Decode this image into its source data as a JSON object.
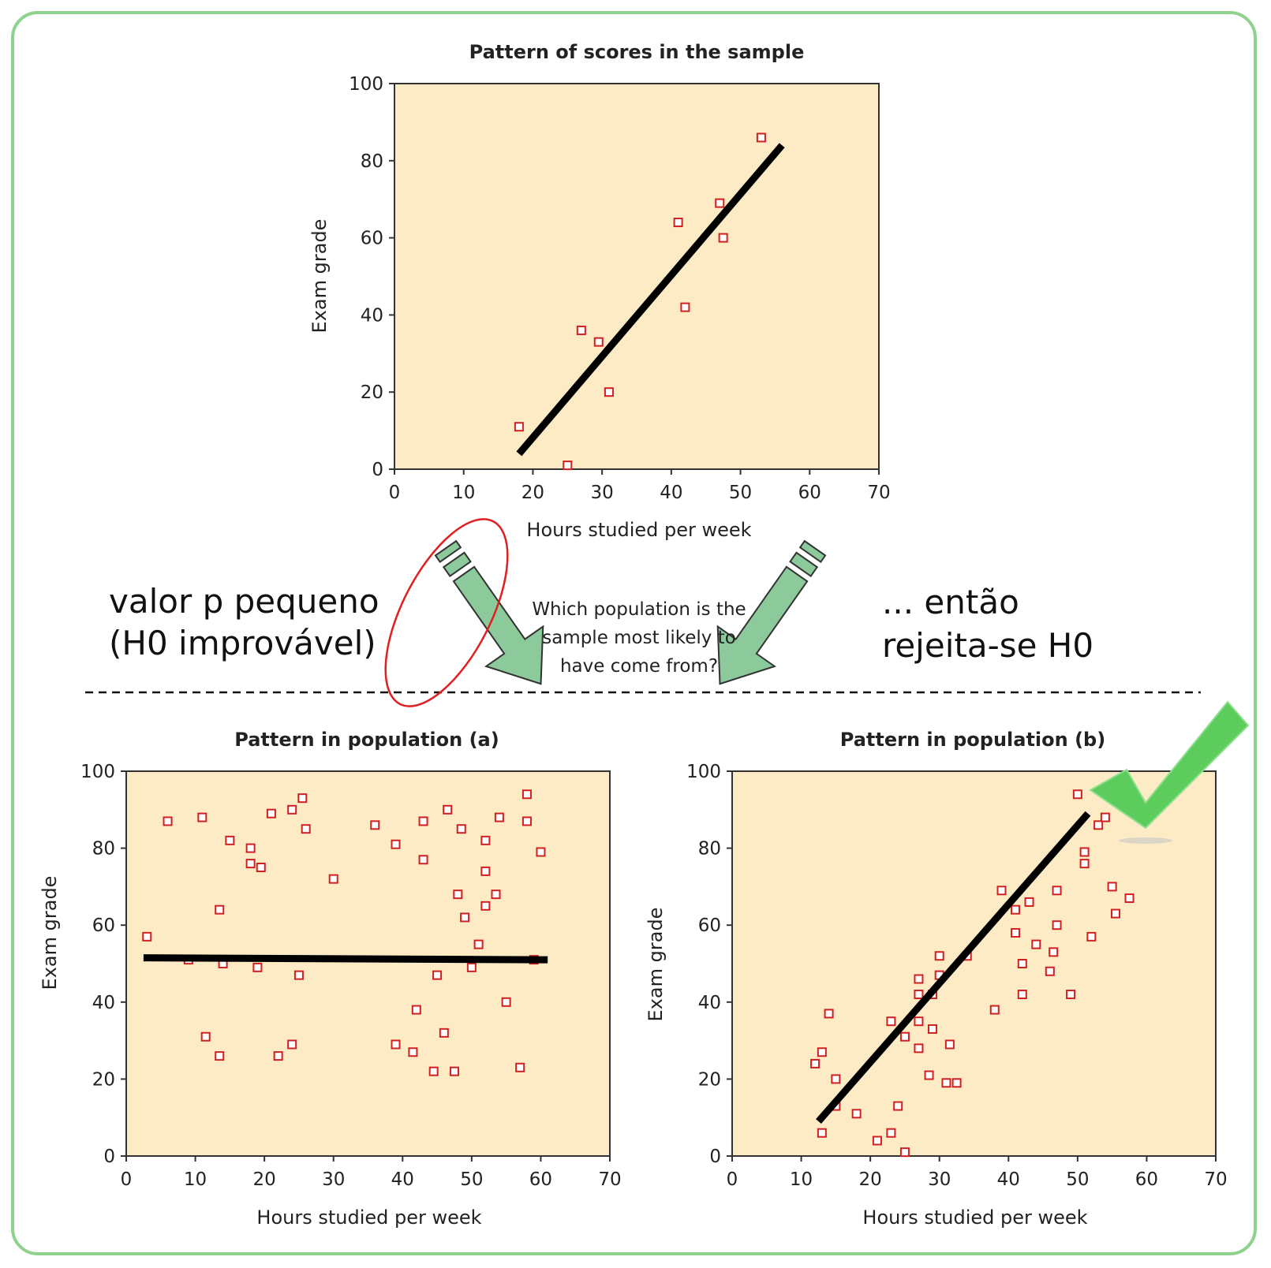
{
  "annotations": {
    "left_line1": "valor p pequeno",
    "left_line2": "(H0 improvável)",
    "right_line1": "... então",
    "right_line2": "rejeita-se H0",
    "question_line1": "Which population is the",
    "question_line2": "sample most likely to",
    "question_line3": "have come from?"
  },
  "colors": {
    "plot_bg": "#fdebc5",
    "marker": "#d02020",
    "fit_line": "#000000",
    "arrow": "#8cc99b",
    "frame": "#8ed28e",
    "checkmark": "#5ccd5c",
    "highlight_ellipse": "#e02020"
  },
  "icons": [
    "down-left-arrow-icon",
    "down-right-arrow-icon",
    "checkmark-icon"
  ],
  "chart_data": [
    {
      "id": "sample",
      "type": "scatter",
      "title": "Pattern of scores in the sample",
      "xlabel": "Hours studied per week",
      "ylabel": "Exam grade",
      "xlim": [
        0,
        70
      ],
      "ylim": [
        0,
        100
      ],
      "xticks": [
        0,
        10,
        20,
        30,
        40,
        50,
        60,
        70
      ],
      "yticks": [
        0,
        20,
        40,
        60,
        80,
        100
      ],
      "grid": false,
      "points": [
        [
          18,
          11
        ],
        [
          25,
          1
        ],
        [
          27,
          36
        ],
        [
          29.5,
          33
        ],
        [
          31,
          20
        ],
        [
          41,
          64
        ],
        [
          42,
          42
        ],
        [
          47,
          69
        ],
        [
          47.5,
          60
        ],
        [
          53,
          86
        ]
      ],
      "fit_line": [
        [
          18,
          4
        ],
        [
          56,
          84
        ]
      ]
    },
    {
      "id": "population_a",
      "type": "scatter",
      "title": "Pattern in population (a)",
      "xlabel": "Hours studied per week",
      "ylabel": "Exam grade",
      "xlim": [
        0,
        70
      ],
      "ylim": [
        0,
        100
      ],
      "xticks": [
        0,
        10,
        20,
        30,
        40,
        50,
        60,
        70
      ],
      "yticks": [
        0,
        20,
        40,
        60,
        80,
        100
      ],
      "grid": false,
      "points": [
        [
          3,
          57
        ],
        [
          6,
          87
        ],
        [
          9,
          51
        ],
        [
          11,
          88
        ],
        [
          11.5,
          31
        ],
        [
          13.5,
          26
        ],
        [
          13.5,
          64
        ],
        [
          14,
          50
        ],
        [
          15,
          82
        ],
        [
          18,
          80
        ],
        [
          18,
          76
        ],
        [
          19,
          49
        ],
        [
          19.5,
          75
        ],
        [
          21,
          89
        ],
        [
          22,
          26
        ],
        [
          24,
          90
        ],
        [
          24,
          29
        ],
        [
          25,
          47
        ],
        [
          25.5,
          93
        ],
        [
          26,
          85
        ],
        [
          30,
          72
        ],
        [
          36,
          86
        ],
        [
          39,
          81
        ],
        [
          39,
          29
        ],
        [
          41.5,
          27
        ],
        [
          42,
          38
        ],
        [
          43,
          87
        ],
        [
          43,
          77
        ],
        [
          44.5,
          22
        ],
        [
          45,
          47
        ],
        [
          46,
          32
        ],
        [
          46.5,
          90
        ],
        [
          47.5,
          22
        ],
        [
          48,
          68
        ],
        [
          48.5,
          85
        ],
        [
          49,
          62
        ],
        [
          50,
          49
        ],
        [
          51,
          55
        ],
        [
          52,
          82
        ],
        [
          52,
          74
        ],
        [
          52,
          65
        ],
        [
          53.5,
          68
        ],
        [
          54,
          88
        ],
        [
          55,
          40
        ],
        [
          57,
          23
        ],
        [
          58,
          94
        ],
        [
          58,
          87
        ],
        [
          59,
          51
        ],
        [
          60,
          79
        ]
      ],
      "fit_line": [
        [
          2.5,
          51.5
        ],
        [
          61,
          51
        ]
      ]
    },
    {
      "id": "population_b",
      "type": "scatter",
      "title": "Pattern in population (b)",
      "xlabel": "Hours studied per week",
      "ylabel": "Exam grade",
      "xlim": [
        0,
        70
      ],
      "ylim": [
        0,
        100
      ],
      "xticks": [
        0,
        10,
        20,
        30,
        40,
        50,
        60,
        70
      ],
      "yticks": [
        0,
        20,
        40,
        60,
        80,
        100
      ],
      "grid": false,
      "points": [
        [
          12,
          24
        ],
        [
          13,
          27
        ],
        [
          13,
          6
        ],
        [
          14,
          37
        ],
        [
          15,
          13
        ],
        [
          15,
          20
        ],
        [
          18,
          11
        ],
        [
          21,
          4
        ],
        [
          23,
          35
        ],
        [
          23,
          6
        ],
        [
          24,
          13
        ],
        [
          25,
          31
        ],
        [
          25,
          1
        ],
        [
          27,
          46
        ],
        [
          27,
          42
        ],
        [
          27,
          35
        ],
        [
          27,
          28
        ],
        [
          28.5,
          21
        ],
        [
          29,
          33
        ],
        [
          29,
          42
        ],
        [
          30,
          52
        ],
        [
          30,
          47
        ],
        [
          31,
          19
        ],
        [
          31.5,
          29
        ],
        [
          32.5,
          19
        ],
        [
          34,
          52
        ],
        [
          38,
          38
        ],
        [
          39,
          69
        ],
        [
          41,
          64
        ],
        [
          41,
          58
        ],
        [
          42,
          50
        ],
        [
          42,
          42
        ],
        [
          43,
          66
        ],
        [
          44,
          55
        ],
        [
          46,
          48
        ],
        [
          46.5,
          53
        ],
        [
          47,
          69
        ],
        [
          47,
          60
        ],
        [
          49,
          42
        ],
        [
          50,
          94
        ],
        [
          51,
          79
        ],
        [
          51,
          76
        ],
        [
          52,
          57
        ],
        [
          53,
          86
        ],
        [
          54,
          88
        ],
        [
          55,
          70
        ],
        [
          55.5,
          63
        ],
        [
          57.5,
          67
        ]
      ],
      "fit_line": [
        [
          12.5,
          9
        ],
        [
          51.5,
          89
        ]
      ]
    }
  ]
}
